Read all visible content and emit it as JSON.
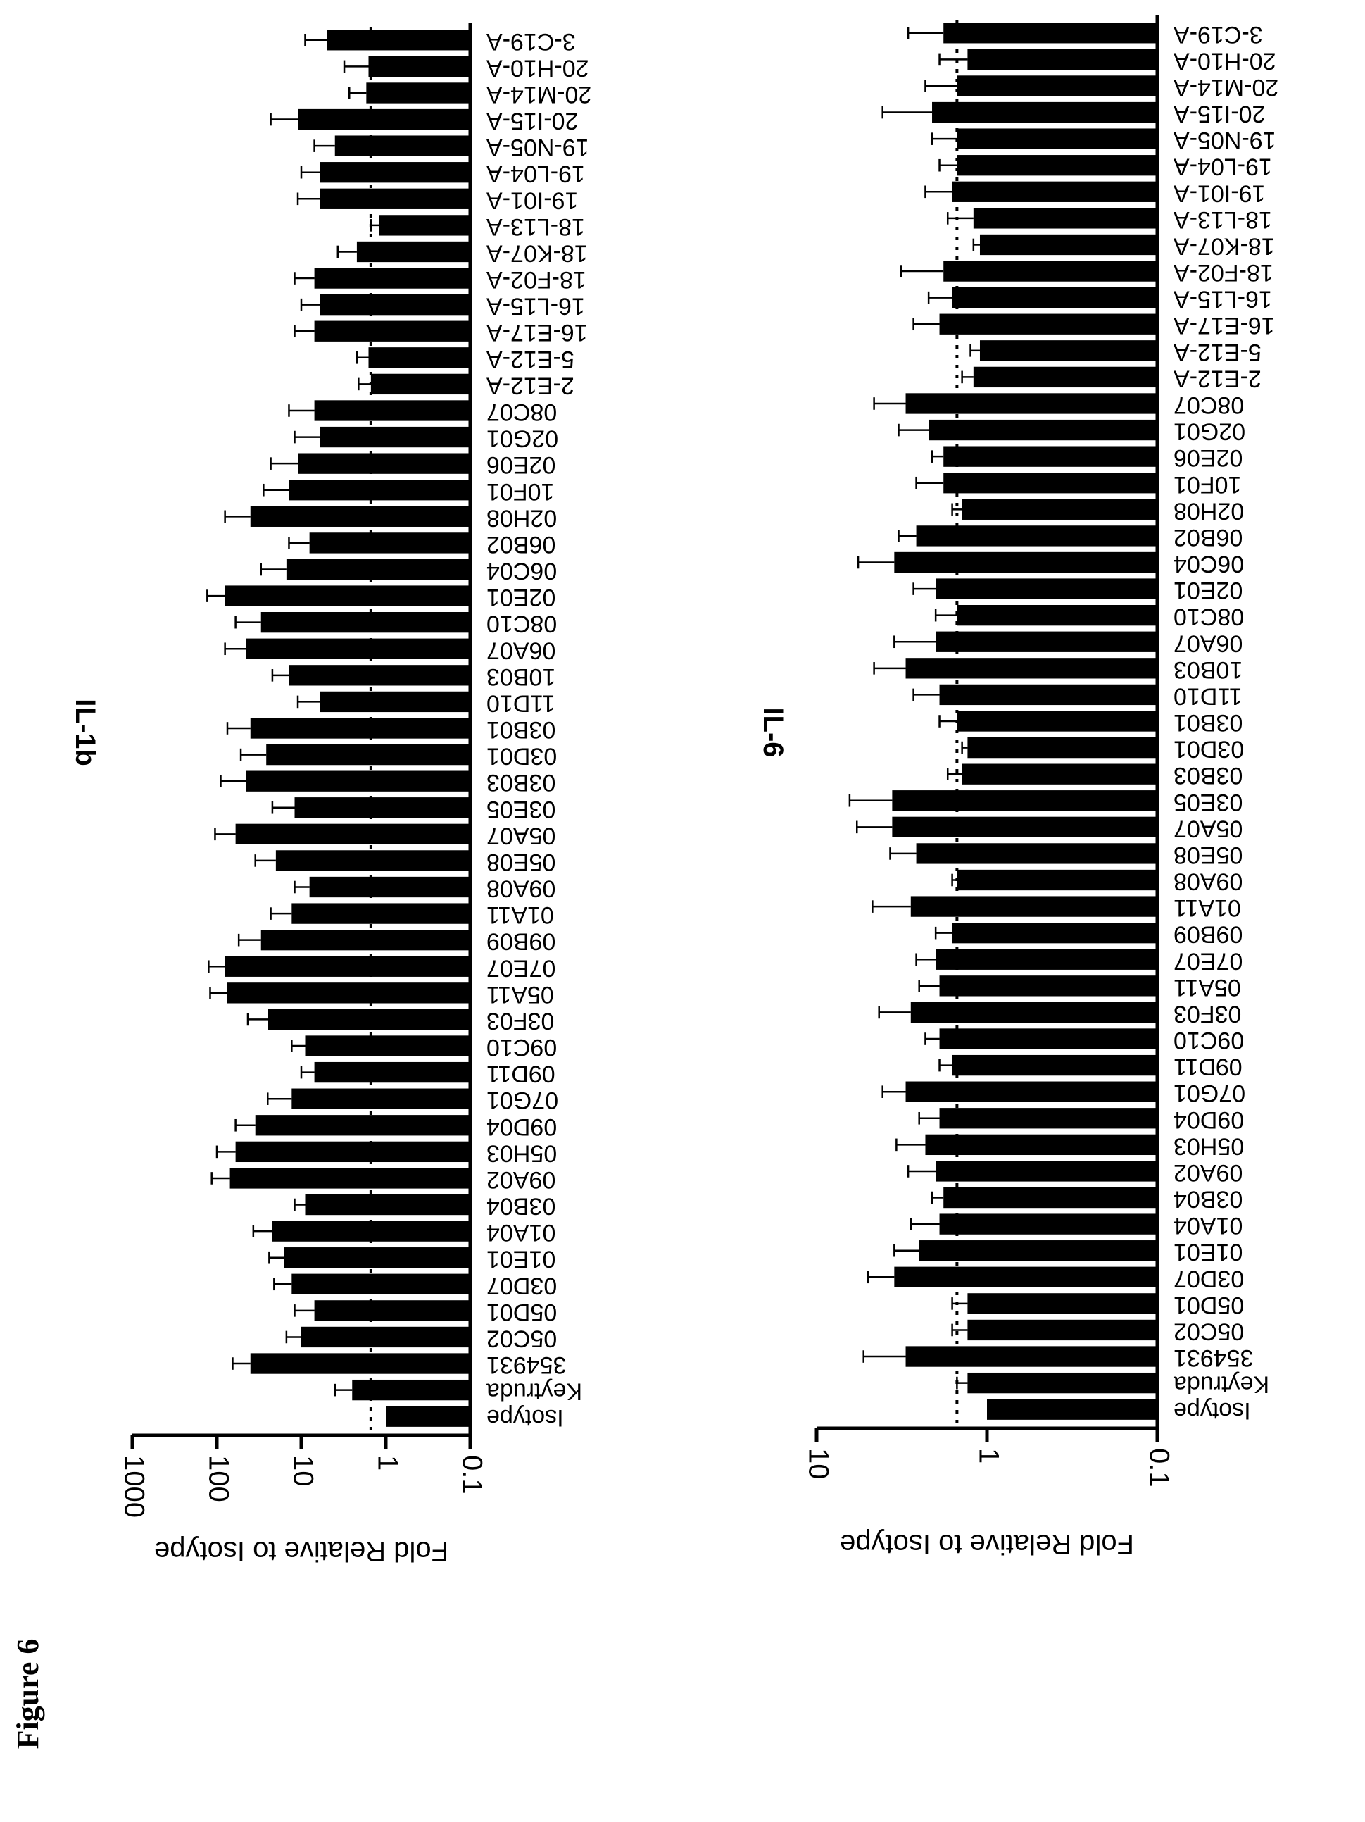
{
  "figure_label": "Figure 6",
  "chart_data": [
    {
      "type": "bar",
      "title": "IL-1b",
      "ylabel": "Fold Relative to Isotype",
      "yscale": "log",
      "ylim": [
        0.1,
        1000
      ],
      "yticks": [
        "0.1",
        "1",
        "10",
        "100",
        "1000"
      ],
      "reference_line": 1.5,
      "categories": [
        "Isotype",
        "Keytruda",
        "354931",
        "05C02",
        "05D01",
        "03D07",
        "01E01",
        "01A04",
        "03B04",
        "09A02",
        "05H03",
        "09D04",
        "07G01",
        "09D11",
        "09C10",
        "03F03",
        "05A11",
        "07E07",
        "09B09",
        "01A11",
        "09A08",
        "05E08",
        "05A07",
        "03E05",
        "03B03",
        "03D01",
        "03B01",
        "11D10",
        "10B03",
        "06A07",
        "08C10",
        "02E01",
        "06C04",
        "06B02",
        "02H08",
        "10F01",
        "02E06",
        "02G01",
        "08C07",
        "2-E12-A",
        "5-E12-A",
        "16-E17-A",
        "16-L15-A",
        "18-F02-A",
        "18-K07-A",
        "18-L13-A",
        "19-I01-A",
        "19-L04-A",
        "19-N05-A",
        "20-I15-A",
        "20-M14-A",
        "20-H10-A",
        "3-C19-A"
      ],
      "values": [
        1,
        2.5,
        40,
        10,
        7,
        13,
        16,
        22,
        9,
        70,
        60,
        35,
        13,
        7,
        9,
        25,
        75,
        80,
        30,
        13,
        8,
        20,
        60,
        12,
        45,
        26,
        40,
        6,
        14,
        45,
        30,
        80,
        15,
        8,
        40,
        14,
        11,
        6,
        7,
        1.5,
        1.6,
        7,
        6,
        7,
        2.2,
        1.2,
        6,
        6,
        4,
        11,
        1.7,
        1.6,
        5
      ],
      "errors": [
        0,
        1.5,
        25,
        5,
        5,
        8,
        8,
        15,
        3,
        45,
        40,
        25,
        12,
        3,
        4,
        18,
        45,
        45,
        25,
        10,
        4,
        15,
        45,
        10,
        45,
        26,
        35,
        5,
        8,
        35,
        30,
        50,
        15,
        6,
        40,
        14,
        12,
        6,
        7,
        0.6,
        0.6,
        5,
        4,
        5,
        1.5,
        0.3,
        5,
        4,
        3,
        12,
        1,
        1.5,
        4
      ]
    },
    {
      "type": "bar",
      "title": "IL-6",
      "ylabel": "Fold Relative to Isotype",
      "yscale": "log",
      "ylim": [
        0.1,
        10
      ],
      "yticks": [
        "0.1",
        "1",
        "10"
      ],
      "reference_line": 1.5,
      "categories": [
        "Isotype",
        "Keytruda",
        "354931",
        "05C02",
        "05D01",
        "03D07",
        "01E01",
        "01A04",
        "03B04",
        "09A02",
        "05H03",
        "09D04",
        "07G01",
        "09D11",
        "09C10",
        "03F03",
        "05A11",
        "07E07",
        "09B09",
        "01A11",
        "09A08",
        "05E08",
        "05A07",
        "03E05",
        "03B03",
        "03D01",
        "03B01",
        "11D10",
        "10B03",
        "06A07",
        "08C10",
        "02E01",
        "06C04",
        "06B02",
        "02H08",
        "10F01",
        "02E06",
        "02G01",
        "08C07",
        "2-E12-A",
        "5-E12-A",
        "16-E17-A",
        "16-L15-A",
        "18-F02-A",
        "18-K07-A",
        "18-L13-A",
        "19-I01-A",
        "19-L04-A",
        "19-N05-A",
        "20-I15-A",
        "20-M14-A",
        "20-H10-A",
        "3-C19-A"
      ],
      "values": [
        1,
        1.3,
        3,
        1.3,
        1.3,
        3.5,
        2.5,
        1.9,
        1.8,
        2,
        2.3,
        1.9,
        3,
        1.6,
        1.9,
        2.8,
        1.9,
        2,
        1.6,
        2.8,
        1.5,
        2.6,
        3.6,
        3.6,
        1.4,
        1.3,
        1.5,
        1.9,
        3,
        2,
        1.5,
        2,
        3.5,
        2.6,
        1.4,
        1.8,
        1.8,
        2.2,
        3,
        1.2,
        1.1,
        1.9,
        1.6,
        1.8,
        1.1,
        1.2,
        1.6,
        1.5,
        1.5,
        2.1,
        1.5,
        1.3,
        1.8
      ],
      "errors": [
        0,
        0.2,
        2.3,
        0.3,
        0.3,
        1.5,
        1,
        0.9,
        0.3,
        0.9,
        1.1,
        0.6,
        1.1,
        0.3,
        0.4,
        1.5,
        0.6,
        0.6,
        0.4,
        1.9,
        0.1,
        1.1,
        2.2,
        2.8,
        0.3,
        0.1,
        0.4,
        0.8,
        1.6,
        1.5,
        0.5,
        0.7,
        2.2,
        0.7,
        0.2,
        0.8,
        0.3,
        1.1,
        1.6,
        0.2,
        0.15,
        0.8,
        0.6,
        1.4,
        0.1,
        0.5,
        0.7,
        0.4,
        0.6,
        2,
        0.8,
        0.6,
        1.1
      ]
    }
  ]
}
